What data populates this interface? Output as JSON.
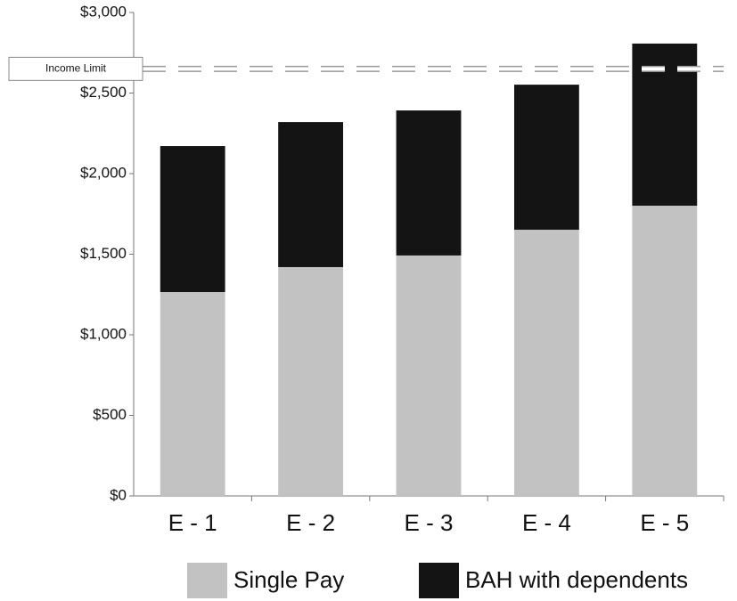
{
  "chart_data": {
    "type": "stacked_bar",
    "categories": [
      "E - 1",
      "E - 2",
      "E - 3",
      "E - 4",
      "E - 5"
    ],
    "series": [
      {
        "name": "Single Pay",
        "color": "#c2c2c2",
        "values": [
          1265,
          1420,
          1492,
          1652,
          1801
        ]
      },
      {
        "name": "BAH with dependents",
        "color": "#141414",
        "values": [
          906,
          900,
          900,
          900,
          1006
        ]
      }
    ],
    "ylim": [
      0,
      3000
    ],
    "yticks": [
      {
        "value": 0,
        "label": "$0"
      },
      {
        "value": 500,
        "label": "$500"
      },
      {
        "value": 1000,
        "label": "$1,000"
      },
      {
        "value": 1500,
        "label": "$1,500"
      },
      {
        "value": 2000,
        "label": "$2,000"
      },
      {
        "value": 2500,
        "label": "$2,500"
      },
      {
        "value": 3000,
        "label": "$3,000"
      }
    ],
    "annotation": {
      "label": "Income Limit",
      "value": 2650
    }
  }
}
